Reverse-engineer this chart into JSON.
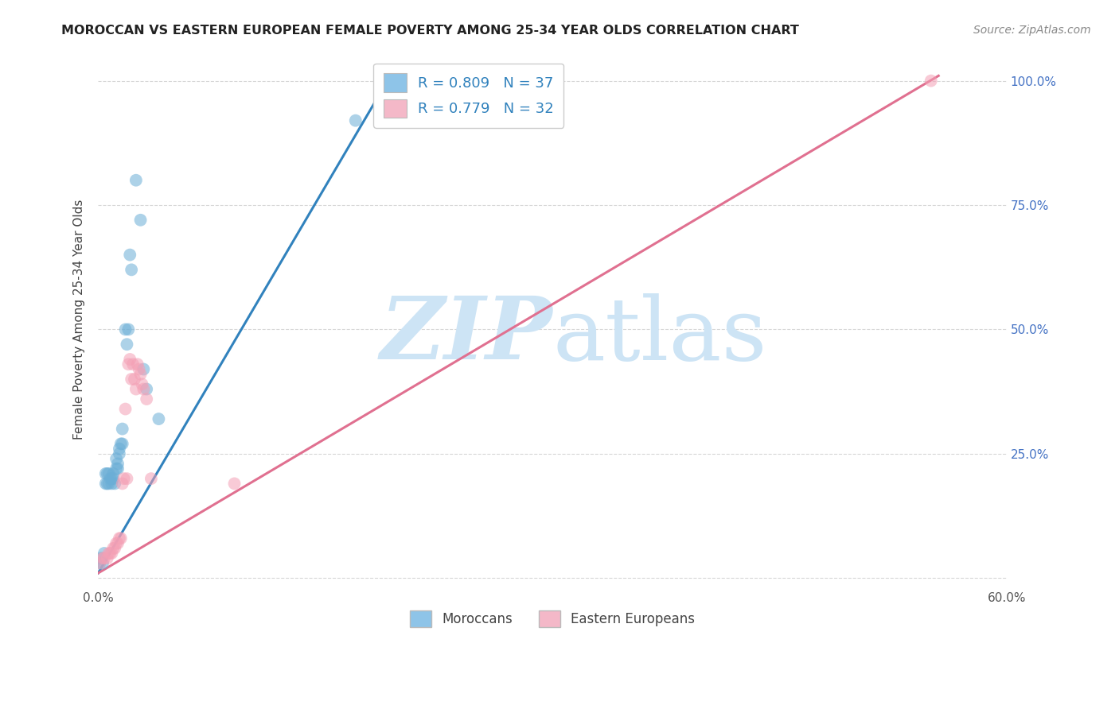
{
  "title": "MOROCCAN VS EASTERN EUROPEAN FEMALE POVERTY AMONG 25-34 YEAR OLDS CORRELATION CHART",
  "source": "Source: ZipAtlas.com",
  "ylabel": "Female Poverty Among 25-34 Year Olds",
  "xlim": [
    0,
    0.6
  ],
  "ylim": [
    -0.02,
    1.06
  ],
  "xticks": [
    0.0,
    0.1,
    0.2,
    0.3,
    0.4,
    0.5,
    0.6
  ],
  "xticklabels": [
    "0.0%",
    "",
    "",
    "",
    "",
    "",
    "60.0%"
  ],
  "yticks": [
    0.0,
    0.25,
    0.5,
    0.75,
    1.0
  ],
  "yticklabels": [
    "",
    "25.0%",
    "50.0%",
    "75.0%",
    "100.0%"
  ],
  "moroccan_color": "#6baed6",
  "eastern_color": "#f4a0b5",
  "moroccan_line_color": "#3182bd",
  "eastern_line_color": "#e07090",
  "background_color": "#ffffff",
  "grid_color": "#cccccc",
  "watermark_color": "#cde4f5",
  "legend_R_moroccan": "0.809",
  "legend_N_moroccan": "37",
  "legend_R_eastern": "0.779",
  "legend_N_eastern": "32",
  "legend_color_blue": "#8ec4e8",
  "legend_color_pink": "#f4b8c8",
  "moroccan_line_x": [
    0.0,
    0.193
  ],
  "moroccan_line_y": [
    0.01,
    1.01
  ],
  "eastern_line_x": [
    0.0,
    0.555
  ],
  "eastern_line_y": [
    0.01,
    1.01
  ],
  "moroccan_scatter_x": [
    0.001,
    0.002,
    0.003,
    0.004,
    0.005,
    0.005,
    0.006,
    0.006,
    0.007,
    0.007,
    0.008,
    0.009,
    0.009,
    0.01,
    0.01,
    0.011,
    0.012,
    0.012,
    0.013,
    0.013,
    0.014,
    0.014,
    0.015,
    0.016,
    0.016,
    0.018,
    0.019,
    0.02,
    0.021,
    0.022,
    0.025,
    0.028,
    0.03,
    0.032,
    0.04,
    0.17,
    0.19
  ],
  "moroccan_scatter_y": [
    0.03,
    0.04,
    0.03,
    0.05,
    0.19,
    0.21,
    0.19,
    0.21,
    0.19,
    0.21,
    0.2,
    0.19,
    0.2,
    0.2,
    0.21,
    0.19,
    0.22,
    0.24,
    0.22,
    0.23,
    0.25,
    0.26,
    0.27,
    0.27,
    0.3,
    0.5,
    0.47,
    0.5,
    0.65,
    0.62,
    0.8,
    0.72,
    0.42,
    0.38,
    0.32,
    0.92,
    1.0
  ],
  "eastern_scatter_x": [
    0.001,
    0.003,
    0.004,
    0.006,
    0.007,
    0.008,
    0.009,
    0.01,
    0.011,
    0.012,
    0.013,
    0.014,
    0.015,
    0.016,
    0.017,
    0.018,
    0.019,
    0.02,
    0.021,
    0.022,
    0.023,
    0.024,
    0.025,
    0.026,
    0.027,
    0.028,
    0.029,
    0.03,
    0.032,
    0.035,
    0.09,
    0.55
  ],
  "eastern_scatter_y": [
    0.03,
    0.04,
    0.04,
    0.04,
    0.05,
    0.05,
    0.05,
    0.06,
    0.06,
    0.07,
    0.07,
    0.08,
    0.08,
    0.19,
    0.2,
    0.34,
    0.2,
    0.43,
    0.44,
    0.4,
    0.43,
    0.4,
    0.38,
    0.43,
    0.42,
    0.41,
    0.39,
    0.38,
    0.36,
    0.2,
    0.19,
    1.0
  ]
}
